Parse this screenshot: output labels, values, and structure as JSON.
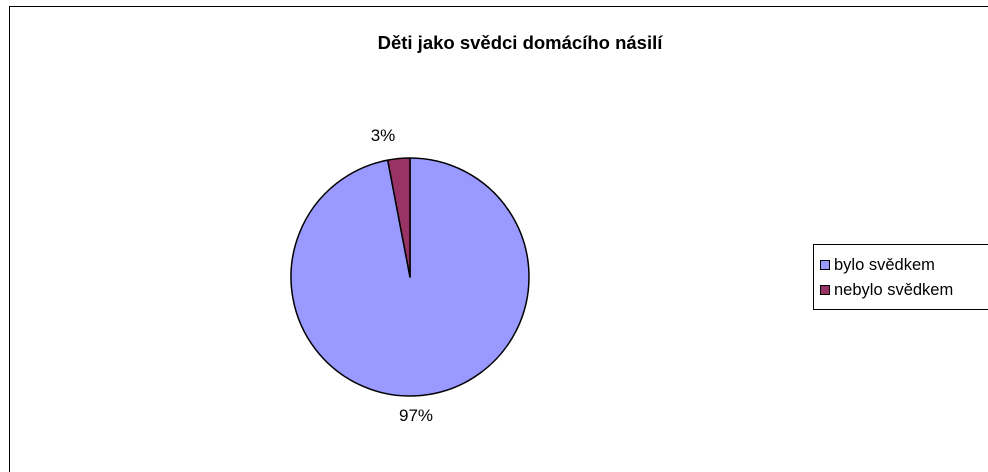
{
  "chart_data": {
    "type": "pie",
    "title": "Děti jako svědci domácího násilí",
    "categories": [
      "bylo svědkem",
      "nebylo svědkem"
    ],
    "values": [
      97,
      3
    ],
    "data_labels": [
      "97%",
      "3%"
    ],
    "colors": [
      "#9999ff",
      "#993366"
    ],
    "legend_position": "right"
  }
}
